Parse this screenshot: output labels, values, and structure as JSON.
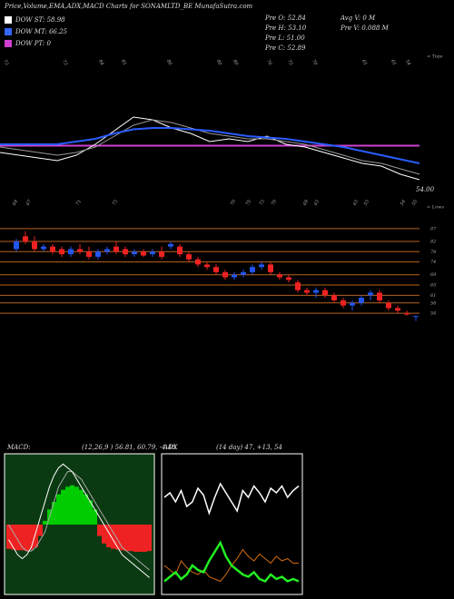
{
  "header": {
    "title": "Price,Volume,EMA,ADX,MACD Charts for SONAMLTD_BE MunafaSutra.com",
    "dow": [
      {
        "label": "DOW ST: 58.98",
        "color": "#ffffff"
      },
      {
        "label": "DOW MT: 66.25",
        "color": "#3366ff"
      },
      {
        "label": "DOW PT: 0",
        "color": "#d040d0"
      }
    ],
    "quote": [
      "Pre  O: 52.84",
      "Pre  H: 53.10",
      "Pre  L: 51.00",
      "Pre  C: 52.89",
      "Avg  V: 0  M",
      "Pre  V: 0.088  M"
    ]
  },
  "price_panel": {
    "ylim": [
      50,
      100
    ],
    "series": [
      {
        "color": "#ffffff",
        "values": [
          64,
          63,
          62,
          61,
          63,
          67,
          72,
          77,
          76,
          73,
          71,
          68,
          69,
          68,
          70,
          67,
          66,
          64,
          62,
          60,
          59,
          56,
          54
        ]
      },
      {
        "color": "#999999",
        "values": [
          66,
          65,
          64,
          63,
          64,
          66,
          70,
          74,
          76,
          75,
          73,
          71,
          70,
          69,
          69,
          68,
          67,
          65,
          63,
          61,
          60,
          58,
          56
        ]
      },
      {
        "color": "#2a5cff",
        "values": [
          67,
          67,
          67,
          67,
          68,
          69,
          71,
          72.5,
          73,
          73,
          72.5,
          72,
          71,
          70,
          69.5,
          69,
          68,
          67,
          66,
          64.5,
          63,
          61.5,
          60
        ]
      }
    ],
    "pt_line": {
      "value": 66.5,
      "color": "#d040d0"
    },
    "top_labels": [
      "73",
      "73",
      "84",
      "81",
      "86",
      "80",
      "80",
      "76",
      "75",
      "70",
      "61",
      "61",
      "54"
    ],
    "bottom_labels": [
      "64",
      "67",
      "71",
      "73",
      "70",
      "75",
      "73",
      "70",
      "69",
      "63",
      "63",
      "53",
      "54",
      "55"
    ],
    "last_label": "54.00",
    "tops_tag": "< Tops",
    "lows_tag": "< Lows"
  },
  "candle_panel": {
    "ylim": [
      50.5,
      91.2
    ],
    "levels": [
      87,
      82,
      78,
      74,
      69,
      65,
      61,
      58,
      54
    ],
    "level_color": "#b8621c",
    "up_color": "#2255ee",
    "down_color": "#ee2222",
    "ohlc": [
      [
        79,
        83,
        78,
        82
      ],
      [
        84,
        86,
        81,
        82
      ],
      [
        82,
        84,
        78,
        79
      ],
      [
        79,
        81,
        78,
        80
      ],
      [
        80,
        81,
        77,
        78
      ],
      [
        79,
        80,
        76,
        77
      ],
      [
        77,
        80,
        76,
        79
      ],
      [
        79,
        81,
        77,
        78
      ],
      [
        78,
        80,
        75,
        76
      ],
      [
        76,
        79,
        75,
        78
      ],
      [
        78,
        80,
        77,
        79
      ],
      [
        80,
        82,
        77,
        78
      ],
      [
        79,
        80,
        76,
        77
      ],
      [
        77,
        79,
        76,
        78
      ],
      [
        78,
        79,
        76,
        76.5
      ],
      [
        77,
        79,
        76,
        78
      ],
      [
        78,
        80,
        75,
        76
      ],
      [
        80,
        82,
        79,
        81
      ],
      [
        80,
        81,
        76,
        77
      ],
      [
        77,
        78,
        74,
        75
      ],
      [
        75,
        76,
        72,
        73
      ],
      [
        73,
        74,
        71,
        72
      ],
      [
        72,
        73,
        69,
        70
      ],
      [
        70,
        71,
        67,
        68
      ],
      [
        68,
        70,
        67,
        69
      ],
      [
        69,
        71,
        68,
        70
      ],
      [
        70,
        73,
        69,
        72
      ],
      [
        72,
        74,
        71,
        73
      ],
      [
        73,
        74,
        69,
        70
      ],
      [
        69,
        70,
        67,
        68
      ],
      [
        68,
        69,
        66,
        67
      ],
      [
        66,
        67,
        62,
        63
      ],
      [
        63,
        64,
        61,
        62
      ],
      [
        62,
        64,
        60,
        63
      ],
      [
        63,
        64,
        60,
        61
      ],
      [
        61,
        62,
        58,
        59
      ],
      [
        59,
        60,
        56,
        57
      ],
      [
        57,
        59,
        55,
        58
      ],
      [
        58,
        61,
        57,
        60
      ],
      [
        61,
        63,
        59,
        62
      ],
      [
        62,
        63,
        58,
        59
      ],
      [
        58,
        59,
        55,
        56
      ],
      [
        56,
        57,
        54,
        55
      ],
      [
        54,
        55,
        53,
        53.5
      ],
      [
        52.84,
        53.1,
        51,
        52.89
      ]
    ]
  },
  "macd_panel": {
    "title": "MACD:",
    "params": "(12,26,9 ) 56.81, 60.79, -4.48",
    "ylim": [
      -9,
      9
    ],
    "pos_color": "#00cc00",
    "neg_color": "#ee2222",
    "histogram": [
      -3.2,
      -3.3,
      -3.4,
      -3.4,
      -3.5,
      -3.3,
      -3,
      -1.5,
      0.5,
      2,
      3,
      4,
      4.6,
      5,
      5.2,
      5,
      4.6,
      4,
      3.2,
      2,
      -1.5,
      -2.5,
      -3,
      -3.2,
      -3.3,
      -3.4,
      -3.5,
      -3.5,
      -3.6,
      -3.6,
      -3.6,
      -3.5
    ],
    "macd": [
      -2,
      -3,
      -4,
      -4.5,
      -4,
      -3,
      -1,
      1,
      3,
      5,
      6.5,
      7.5,
      8,
      7.5,
      7,
      6,
      5,
      4,
      3,
      2,
      1,
      0,
      -1,
      -2,
      -3,
      -4,
      -4.5,
      -5,
      -5.5,
      -6,
      -6.5,
      -7
    ],
    "signal": [
      0,
      -1,
      -2,
      -3,
      -3.5,
      -3.5,
      -3,
      -2,
      -1,
      1,
      3,
      5,
      6,
      7,
      7,
      6.5,
      6,
      5,
      4,
      3,
      2,
      1,
      0,
      -1,
      -2,
      -3,
      -3.5,
      -4,
      -4.5,
      -5,
      -5.5,
      -6
    ]
  },
  "adx_panel": {
    "title": "ADX",
    "params": "(14 day) 47, +13, 54",
    "ylim": [
      0,
      60
    ],
    "adx": [
      42,
      44,
      40,
      45,
      38,
      40,
      46,
      43,
      35,
      42,
      48,
      44,
      40,
      36,
      45,
      42,
      47,
      44,
      40,
      46,
      44,
      47,
      42,
      45,
      47
    ],
    "plus_di": [
      5,
      7,
      9,
      6,
      8,
      12,
      10,
      9,
      14,
      18,
      22,
      16,
      12,
      10,
      8,
      7,
      9,
      6,
      5,
      8,
      6,
      7,
      5,
      6,
      5
    ],
    "minus_di": [
      12,
      10,
      8,
      14,
      11,
      9,
      8,
      10,
      7,
      6,
      5,
      8,
      12,
      15,
      19,
      16,
      14,
      17,
      15,
      13,
      16,
      14,
      15,
      13,
      13
    ]
  }
}
